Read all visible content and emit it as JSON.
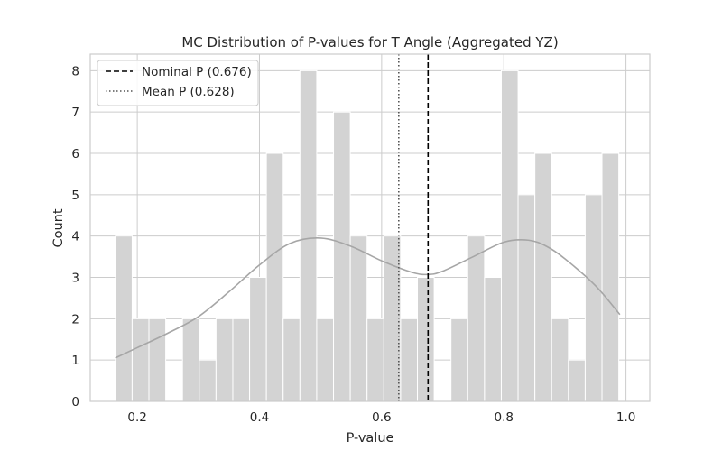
{
  "chart_data": {
    "type": "bar",
    "title": "MC Distribution of P-values for T Angle (Aggregated YZ)",
    "xlabel": "P-value",
    "ylabel": "Count",
    "xlim": [
      0.123,
      1.039
    ],
    "ylim": [
      0,
      8.4
    ],
    "xticks": [
      0.2,
      0.4,
      0.6,
      0.8,
      1.0
    ],
    "xtick_labels": [
      "0.2",
      "0.4",
      "0.6",
      "0.8",
      "1.0"
    ],
    "yticks": [
      0,
      1,
      2,
      3,
      4,
      5,
      6,
      7,
      8
    ],
    "ytick_labels": [
      "0",
      "1",
      "2",
      "3",
      "4",
      "5",
      "6",
      "7",
      "8"
    ],
    "grid": true,
    "bin_start": 0.1641,
    "bin_width": 0.02747,
    "counts": [
      4,
      2,
      2,
      0,
      2,
      1,
      2,
      2,
      3,
      6,
      2,
      8,
      2,
      7,
      4,
      2,
      4,
      2,
      3,
      0,
      2,
      4,
      3,
      8,
      5,
      6,
      2,
      1,
      5,
      6
    ],
    "bar_color": "#d3d3d3",
    "kde": {
      "color": "#a6a6a6",
      "x": [
        0.164,
        0.2,
        0.25,
        0.3,
        0.35,
        0.4,
        0.45,
        0.5,
        0.55,
        0.6,
        0.65,
        0.676,
        0.7,
        0.75,
        0.8,
        0.84,
        0.87,
        0.9,
        0.95,
        0.99
      ],
      "y": [
        1.05,
        1.3,
        1.65,
        2.05,
        2.65,
        3.3,
        3.82,
        3.95,
        3.75,
        3.4,
        3.12,
        3.07,
        3.15,
        3.5,
        3.85,
        3.9,
        3.75,
        3.45,
        2.8,
        2.1
      ]
    },
    "lines": [
      {
        "name": "Nominal P (0.676)",
        "x": 0.676,
        "style": "dashed",
        "color": "#000000"
      },
      {
        "name": "Mean P (0.628)",
        "x": 0.628,
        "style": "dotted",
        "color": "#555555"
      }
    ],
    "legend_position": "top-left"
  }
}
